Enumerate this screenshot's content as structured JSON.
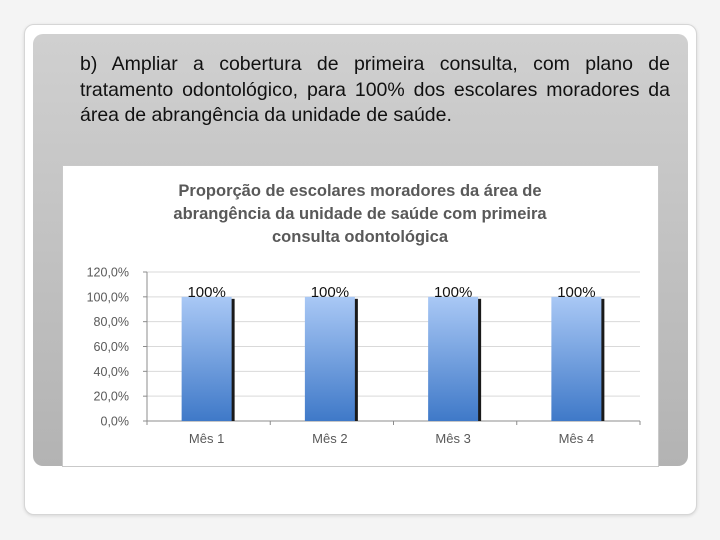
{
  "slide": {
    "text": "b) Ampliar a cobertura de primeira consulta, com plano de tratamento odontológico, para 100% dos escolares moradores da área de abrangência da unidade de saúde."
  },
  "colors": {
    "bar_top": "#a9c8f5",
    "bar_bottom": "#3f79c8",
    "bar_shadow": "#1a1a1a",
    "title": "#595959",
    "axis_text": "#595959",
    "grid": "#d9d9d9"
  },
  "chart_data": {
    "type": "bar",
    "title_lines": [
      "Proporção de escolares moradores da área de",
      "abrangência da unidade  de saúde com primeira",
      "consulta odontológica"
    ],
    "categories": [
      "Mês 1",
      "Mês 2",
      "Mês 3",
      "Mês 4"
    ],
    "values": [
      100,
      100,
      100,
      100
    ],
    "data_labels": [
      "100%",
      "100%",
      "100%",
      "100%"
    ],
    "ylim": [
      0,
      120
    ],
    "y_ticks": [
      0,
      20,
      40,
      60,
      80,
      100,
      120
    ],
    "y_tick_labels": [
      "0,0%",
      "20,0%",
      "40,0%",
      "60,0%",
      "80,0%",
      "100,0%",
      "120,0%"
    ],
    "grid": true,
    "legend": "none"
  }
}
